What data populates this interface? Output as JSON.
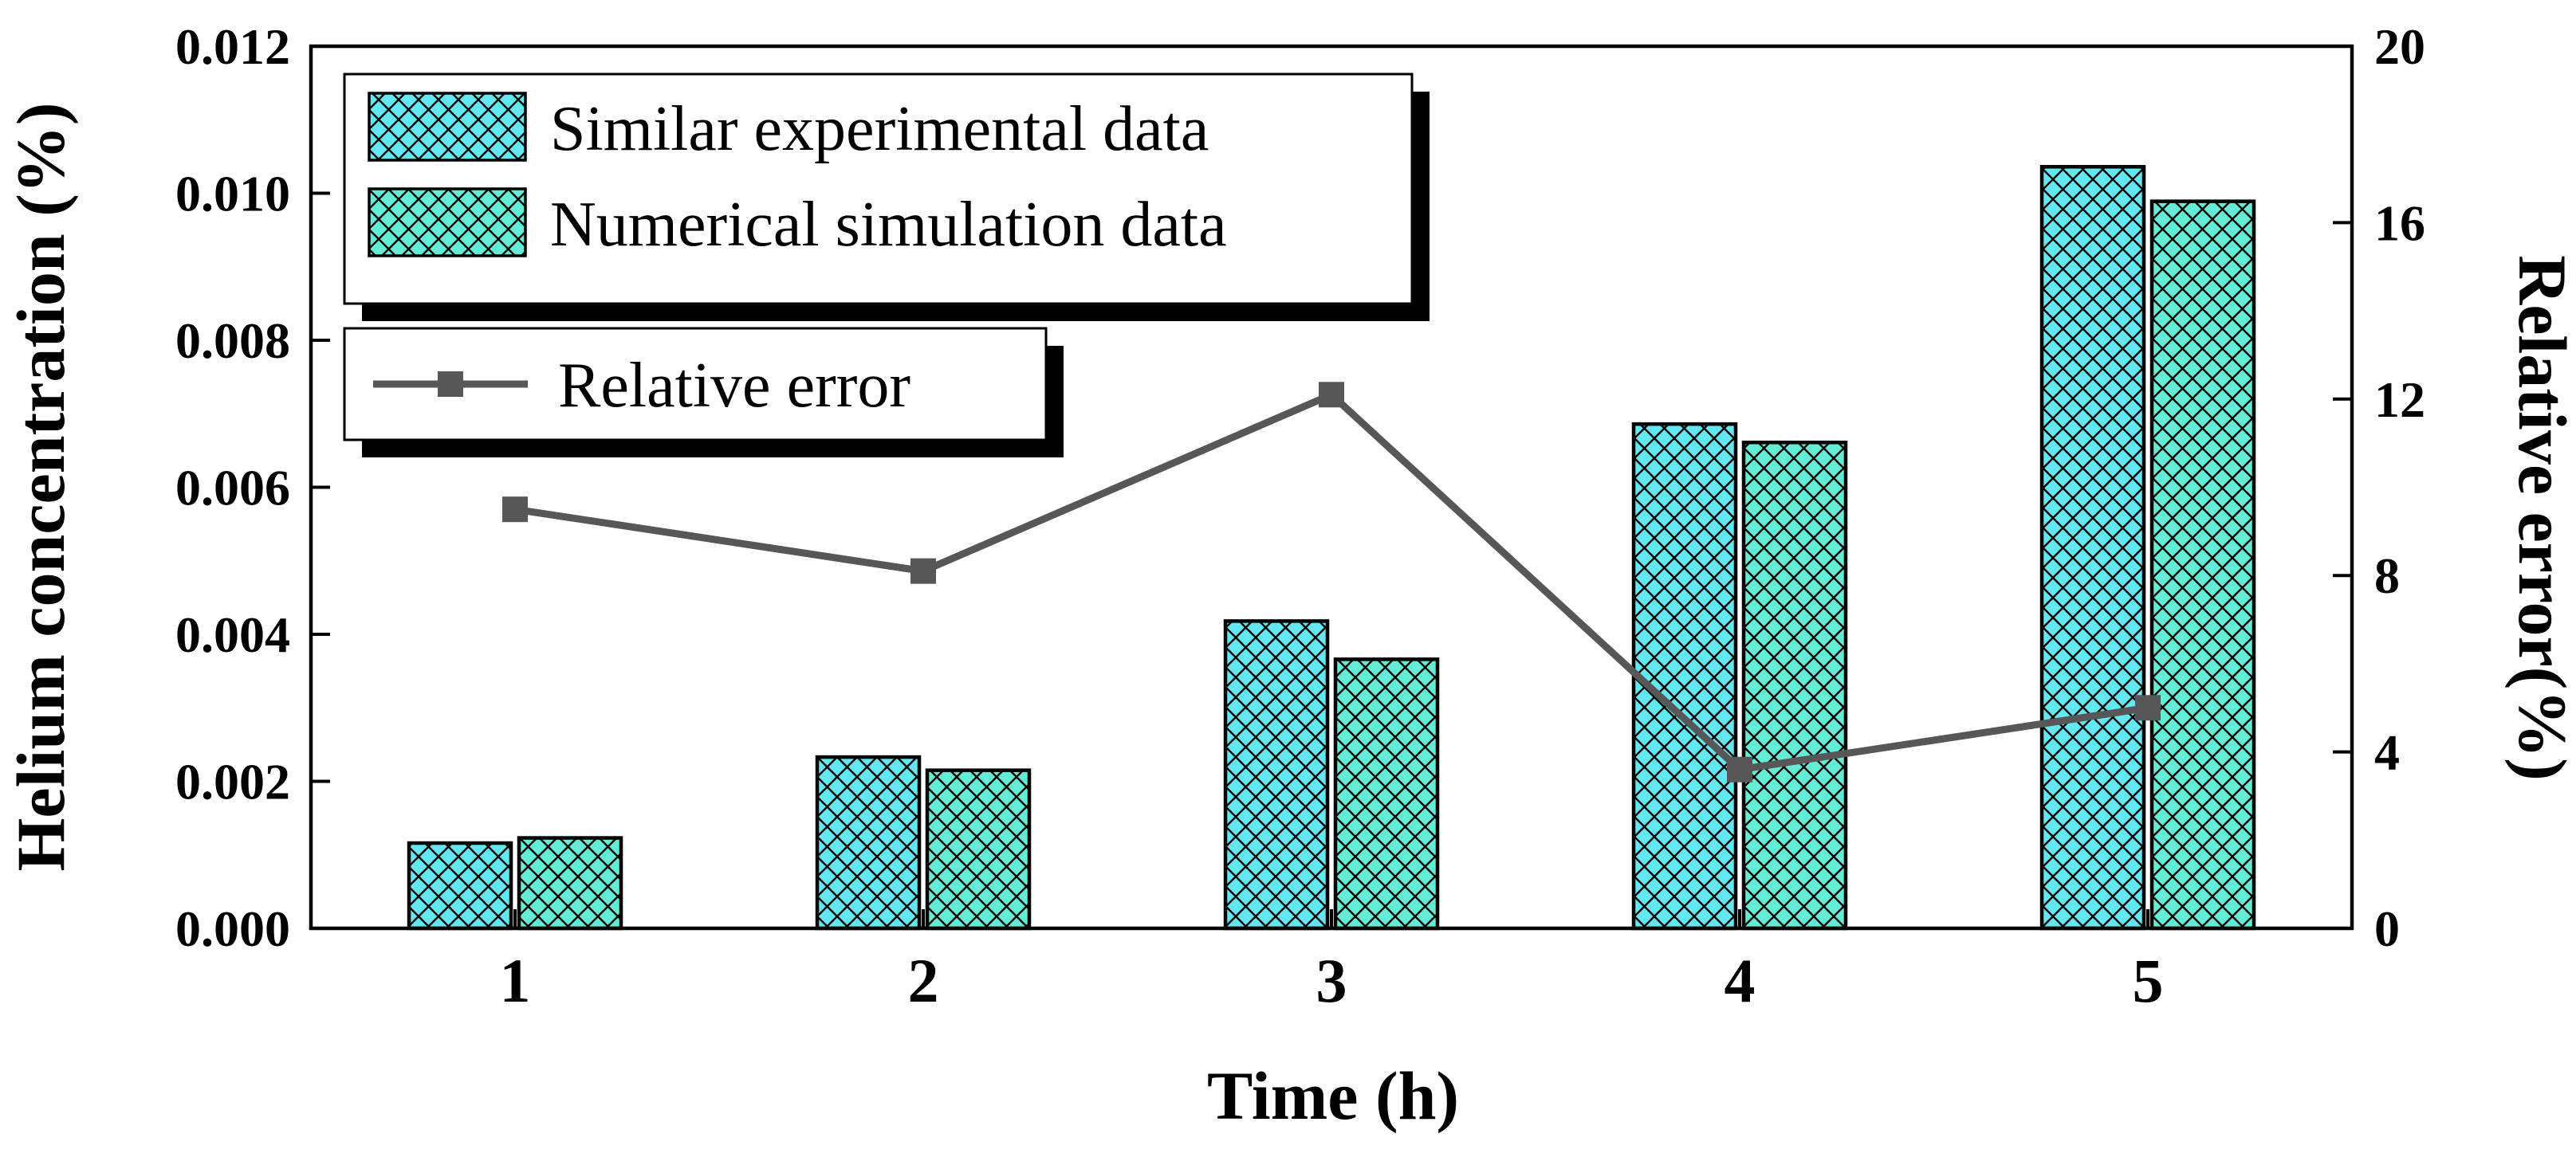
{
  "chart_data": {
    "type": "bar",
    "title": "",
    "categories": [
      "1",
      "2",
      "3",
      "4",
      "5"
    ],
    "series": [
      {
        "name": "Similar experimental data",
        "type": "bar",
        "axis": "left",
        "color": "#62e8f0",
        "hatch": "diagonal-cross",
        "values": [
          0.00116,
          0.00233,
          0.00418,
          0.00686,
          0.01036
        ]
      },
      {
        "name": "Numerical simulation data",
        "type": "bar",
        "axis": "left",
        "color": "#63edd7",
        "hatch": "diagonal-cross",
        "values": [
          0.00123,
          0.00215,
          0.00366,
          0.00661,
          0.00989
        ]
      },
      {
        "name": "Relative error",
        "type": "line",
        "axis": "right",
        "color": "#575757",
        "marker": "filled-square",
        "values": [
          9.5,
          8.1,
          12.1,
          3.6,
          5.0
        ]
      }
    ],
    "x_axis": {
      "label": "Time (h)",
      "tick_labels": [
        "1",
        "2",
        "3",
        "4",
        "5"
      ]
    },
    "left_axis": {
      "label": "Helium concentration (%)",
      "min": 0,
      "max": 0.012,
      "tick_labels": [
        "0.000",
        "0.002",
        "0.004",
        "0.006",
        "0.008",
        "0.010",
        "0.012"
      ]
    },
    "right_axis": {
      "label": "Relative error(%)",
      "min": 0,
      "max": 20,
      "tick_labels": [
        "0",
        "4",
        "8",
        "12",
        "16",
        "20"
      ]
    },
    "legend": {
      "position": "top-left",
      "style": "boxed-with-drop-shadow",
      "entries": [
        "Similar experimental data",
        "Numerical simulation data",
        "Relative error"
      ]
    },
    "grid": false,
    "background_color": "#ffffff",
    "frame_color": "#000000"
  }
}
